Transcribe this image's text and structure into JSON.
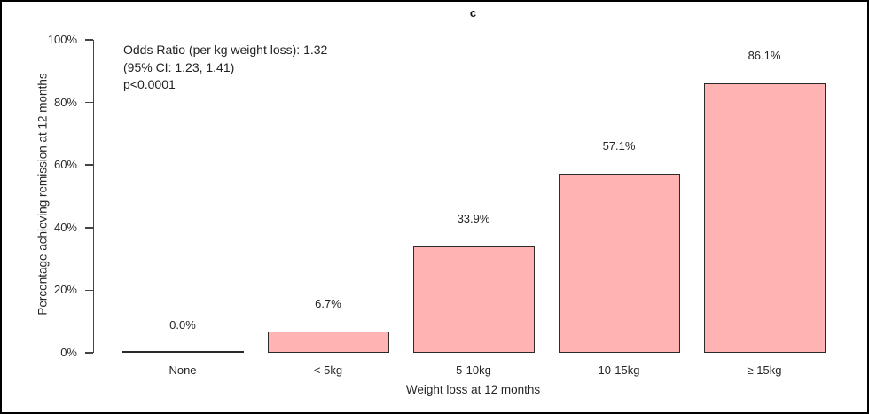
{
  "chart_data": {
    "type": "bar",
    "title": "c",
    "categories": [
      "None",
      "< 5kg",
      "5-10kg",
      "10-15kg",
      "≥ 15kg"
    ],
    "values": [
      0.0,
      6.7,
      33.9,
      57.1,
      86.1
    ],
    "value_labels": [
      "0.0%",
      "6.7%",
      "33.9%",
      "57.1%",
      "86.1%"
    ],
    "xlabel": "Weight loss at 12 months",
    "ylabel": "Percentage achieving remission at 12 months",
    "ylim": [
      0,
      100
    ],
    "y_tick_values": [
      0,
      20,
      40,
      60,
      80,
      100
    ],
    "y_ticks": [
      "0%",
      "20%",
      "40%",
      "60%",
      "80%",
      "100%"
    ],
    "grid": false,
    "legend": "none",
    "bar_fill": "#ffb3b3",
    "bar_border": "#2b2b2b",
    "annotation": [
      "Odds Ratio (per kg weight loss): 1.32",
      "(95% CI: 1.23, 1.41)",
      "p<0.0001"
    ]
  }
}
